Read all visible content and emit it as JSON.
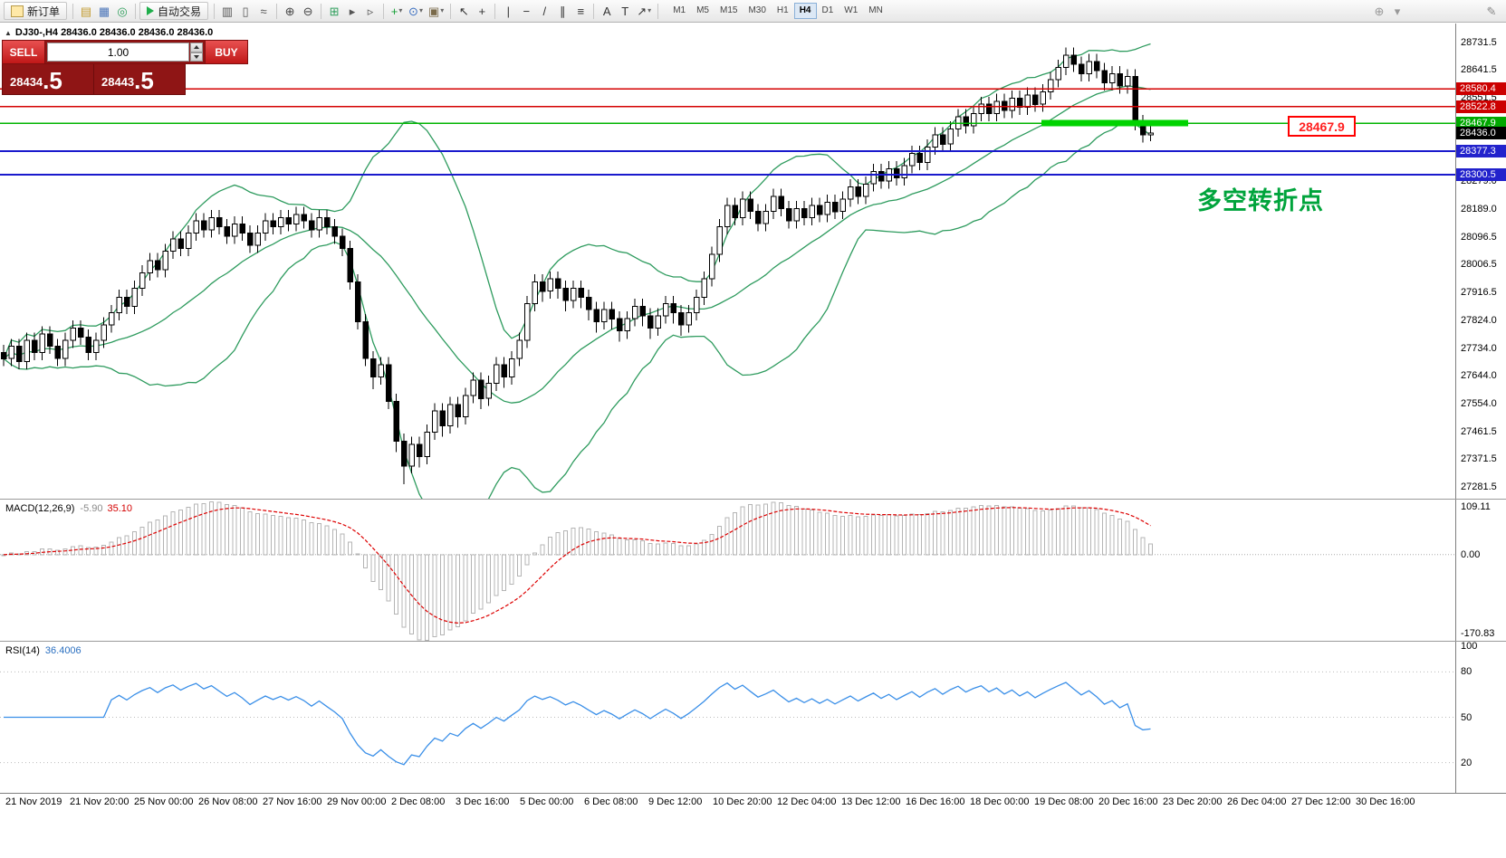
{
  "toolbar": {
    "new_order_label": "新订单",
    "auto_trading_label": "自动交易",
    "left_icons": [
      {
        "name": "market-watch-icon",
        "glyph": "▤",
        "color": "#c29a2e"
      },
      {
        "name": "data-window-icon",
        "glyph": "▦",
        "color": "#4a74b8"
      },
      {
        "name": "navigator-icon",
        "glyph": "◎",
        "color": "#2e9e5b"
      }
    ],
    "mid_icons": [
      {
        "name": "bars-chart-icon",
        "glyph": "▥",
        "color": "#555555"
      },
      {
        "name": "candlestick-chart-icon",
        "glyph": "▯",
        "color": "#555555"
      },
      {
        "name": "line-chart-icon",
        "glyph": "≈",
        "color": "#555555"
      },
      {
        "sep": true
      },
      {
        "name": "zoom-in-icon",
        "glyph": "⊕",
        "color": "#444444"
      },
      {
        "name": "zoom-out-icon",
        "glyph": "⊖",
        "color": "#444444"
      },
      {
        "sep": true
      },
      {
        "name": "tile-windows-icon",
        "glyph": "⊞",
        "color": "#2e9e5b"
      },
      {
        "name": "auto-scroll-icon",
        "glyph": "▸",
        "color": "#555555"
      },
      {
        "name": "chart-shift-icon",
        "glyph": "▹",
        "color": "#555555"
      },
      {
        "sep": true
      },
      {
        "name": "add-indicator-icon",
        "glyph": "+",
        "color": "#18a038",
        "caret": true
      },
      {
        "name": "period-icon",
        "glyph": "⊙",
        "color": "#3a6ec0",
        "caret": true
      },
      {
        "name": "template-icon",
        "glyph": "▣",
        "color": "#7a6a4a",
        "caret": true
      },
      {
        "sep": true
      },
      {
        "name": "cursor-icon",
        "glyph": "↖",
        "color": "#333333"
      },
      {
        "name": "crosshair-icon",
        "glyph": "+",
        "color": "#333333"
      },
      {
        "sep": true
      },
      {
        "name": "vertical-line-icon",
        "glyph": "|",
        "color": "#333333"
      },
      {
        "name": "horizontal-line-icon",
        "glyph": "−",
        "color": "#333333"
      },
      {
        "name": "trendline-icon",
        "glyph": "/",
        "color": "#333333"
      },
      {
        "name": "channel-icon",
        "glyph": "∥",
        "color": "#333333"
      },
      {
        "name": "fibonacci-icon",
        "glyph": "≡",
        "color": "#333333"
      },
      {
        "sep": true
      },
      {
        "name": "text-icon",
        "glyph": "A",
        "color": "#333333"
      },
      {
        "name": "label-icon",
        "glyph": "T",
        "color": "#333333"
      },
      {
        "name": "arrows-icon",
        "glyph": "↗",
        "color": "#333333",
        "caret": true
      }
    ],
    "right_icons": [
      {
        "name": "search-icon",
        "glyph": "⊕",
        "color": "#999999"
      },
      {
        "name": "dropdown-caret-icon",
        "glyph": "▾",
        "color": "#999999"
      }
    ],
    "far_right_icons": [
      {
        "name": "pencil-icon",
        "glyph": "✎",
        "color": "#888888"
      }
    ],
    "timeframes": [
      "M1",
      "M5",
      "M15",
      "M30",
      "H1",
      "H4",
      "D1",
      "W1",
      "MN"
    ],
    "active_timeframe": "H4"
  },
  "chart_header": {
    "collapse_glyph": "▲",
    "symbol_period": "DJ30-,H4",
    "ohlc_text": "28436.0 28436.0 28436.0 28436.0"
  },
  "trade_panel": {
    "sell_label": "SELL",
    "buy_label": "BUY",
    "volume": "1.00",
    "sell_price": "28434.5",
    "buy_price": "28443.5"
  },
  "annotation": {
    "text": "多空转折点"
  },
  "price_flag": {
    "text": "28467.9"
  },
  "levels": {
    "red": [
      28580.4,
      28522.8
    ],
    "blue": [
      28377.3,
      28300.5
    ],
    "green": 28467.9,
    "current": 28436.0
  },
  "price_axis": {
    "ticks": [
      28731.5,
      28641.5,
      28551.5,
      28461.5,
      28371.5,
      28279.0,
      28189.0,
      28096.5,
      28006.5,
      27916.5,
      27824.0,
      27734.0,
      27644.0,
      27554.0,
      27461.5,
      27371.5,
      27281.5
    ],
    "badges": [
      {
        "value": 28580.4,
        "color": "#cc0000"
      },
      {
        "value": 28522.8,
        "color": "#cc0000"
      },
      {
        "value": 28467.9,
        "color": "#00a800"
      },
      {
        "value": 28436.0,
        "color": "#000000"
      },
      {
        "value": 28377.3,
        "color": "#2222cc"
      },
      {
        "value": 28300.5,
        "color": "#2222cc"
      }
    ]
  },
  "macd": {
    "name": "MACD(12,26,9)",
    "value_main": "-5.90",
    "value_signal": "35.10",
    "axis_top": "109.11",
    "axis_zero": "0.00",
    "axis_bottom": "-170.83"
  },
  "rsi": {
    "name": "RSI(14)",
    "value": "36.4006",
    "axis_labels": [
      {
        "label": "100",
        "value": 100
      },
      {
        "label": "80",
        "value": 80
      },
      {
        "label": "50",
        "value": 50
      },
      {
        "label": "20",
        "value": 20
      }
    ]
  },
  "colors": {
    "candle_up": "#ffffff",
    "candle_down": "#000000",
    "candle_outline": "#000000",
    "bollinger": "#2E9B5E",
    "macd_hist": "#b4b4b4",
    "macd_signal": "#dd0000",
    "rsi_line": "#3a8fe8",
    "level_red": "#d40000",
    "level_blue": "#1a1acd",
    "level_green": "#00b400",
    "level_highlight": "#00d300"
  },
  "chart_data": {
    "type": "candlestick",
    "symbol": "DJ30-",
    "period": "H4",
    "scale": {
      "price_top": 28793.5,
      "price_bottom": 27243.0
    },
    "indicators": {
      "bollinger": {
        "period": 20,
        "deviation": 2
      },
      "macd": {
        "fast": 12,
        "slow": 26,
        "signal": 9,
        "range_max": 109.11,
        "range_min": -170.83
      },
      "rsi": {
        "period": 14,
        "levels": [
          80,
          50,
          20
        ]
      }
    },
    "time_labels": [
      "21 Nov 2019",
      "21 Nov 20:00",
      "25 Nov 00:00",
      "26 Nov 08:00",
      "27 Nov 16:00",
      "29 Nov 00:00",
      "2 Dec 08:00",
      "3 Dec 16:00",
      "5 Dec 00:00",
      "6 Dec 08:00",
      "9 Dec 12:00",
      "10 Dec 20:00",
      "12 Dec 04:00",
      "13 Dec 12:00",
      "16 Dec 16:00",
      "18 Dec 00:00",
      "19 Dec 08:00",
      "20 Dec 16:00",
      "23 Dec 20:00",
      "26 Dec 04:00",
      "27 Dec 12:00",
      "30 Dec 16:00"
    ],
    "ohlc": [
      [
        27720,
        27745,
        27675,
        27700
      ],
      [
        27700,
        27765,
        27675,
        27740
      ],
      [
        27740,
        27765,
        27665,
        27690
      ],
      [
        27690,
        27785,
        27665,
        27760
      ],
      [
        27760,
        27785,
        27695,
        27720
      ],
      [
        27720,
        27805,
        27695,
        27780
      ],
      [
        27780,
        27805,
        27715,
        27740
      ],
      [
        27740,
        27765,
        27675,
        27700
      ],
      [
        27700,
        27785,
        27675,
        27760
      ],
      [
        27760,
        27825,
        27735,
        27800
      ],
      [
        27800,
        27825,
        27745,
        27770
      ],
      [
        27770,
        27795,
        27695,
        27720
      ],
      [
        27720,
        27785,
        27695,
        27760
      ],
      [
        27760,
        27835,
        27735,
        27810
      ],
      [
        27810,
        27875,
        27785,
        27850
      ],
      [
        27850,
        27925,
        27825,
        27900
      ],
      [
        27900,
        27925,
        27845,
        27870
      ],
      [
        27870,
        27955,
        27845,
        27930
      ],
      [
        27930,
        28005,
        27905,
        27980
      ],
      [
        27980,
        28045,
        27955,
        28020
      ],
      [
        28020,
        28045,
        27965,
        27990
      ],
      [
        27990,
        28075,
        27965,
        28050
      ],
      [
        28050,
        28115,
        28025,
        28090
      ],
      [
        28090,
        28115,
        28035,
        28060
      ],
      [
        28060,
        28135,
        28035,
        28110
      ],
      [
        28110,
        28175,
        28085,
        28150
      ],
      [
        28150,
        28175,
        28095,
        28120
      ],
      [
        28120,
        28185,
        28095,
        28160
      ],
      [
        28160,
        28185,
        28105,
        28130
      ],
      [
        28130,
        28155,
        28075,
        28100
      ],
      [
        28100,
        28165,
        28075,
        28140
      ],
      [
        28140,
        28165,
        28085,
        28110
      ],
      [
        28110,
        28135,
        28045,
        28070
      ],
      [
        28070,
        28135,
        28045,
        28110
      ],
      [
        28110,
        28175,
        28085,
        28150
      ],
      [
        28150,
        28175,
        28105,
        28130
      ],
      [
        28130,
        28185,
        28105,
        28160
      ],
      [
        28160,
        28185,
        28115,
        28140
      ],
      [
        28140,
        28195,
        28115,
        28170
      ],
      [
        28170,
        28195,
        28125,
        28150
      ],
      [
        28150,
        28175,
        28095,
        28120
      ],
      [
        28120,
        28185,
        28095,
        28160
      ],
      [
        28160,
        28185,
        28105,
        28130
      ],
      [
        28130,
        28155,
        28075,
        28100
      ],
      [
        28100,
        28125,
        28035,
        28060
      ],
      [
        28060,
        28085,
        27925,
        27950
      ],
      [
        27950,
        27975,
        27795,
        27820
      ],
      [
        27820,
        27845,
        27675,
        27700
      ],
      [
        27700,
        27725,
        27600,
        27640
      ],
      [
        27640,
        27705,
        27615,
        27680
      ],
      [
        27680,
        27705,
        27535,
        27560
      ],
      [
        27560,
        27585,
        27395,
        27430
      ],
      [
        27430,
        27455,
        27290,
        27350
      ],
      [
        27350,
        27445,
        27325,
        27420
      ],
      [
        27420,
        27445,
        27345,
        27380
      ],
      [
        27380,
        27485,
        27355,
        27460
      ],
      [
        27460,
        27555,
        27435,
        27530
      ],
      [
        27530,
        27555,
        27445,
        27480
      ],
      [
        27480,
        27575,
        27455,
        27550
      ],
      [
        27550,
        27575,
        27475,
        27510
      ],
      [
        27510,
        27605,
        27485,
        27580
      ],
      [
        27580,
        27655,
        27555,
        27630
      ],
      [
        27630,
        27655,
        27535,
        27570
      ],
      [
        27570,
        27645,
        27545,
        27620
      ],
      [
        27620,
        27705,
        27595,
        27680
      ],
      [
        27680,
        27705,
        27605,
        27640
      ],
      [
        27640,
        27725,
        27615,
        27700
      ],
      [
        27700,
        27785,
        27675,
        27760
      ],
      [
        27760,
        27905,
        27735,
        27880
      ],
      [
        27880,
        27975,
        27855,
        27950
      ],
      [
        27950,
        27975,
        27885,
        27920
      ],
      [
        27920,
        27985,
        27895,
        27960
      ],
      [
        27960,
        27985,
        27895,
        27930
      ],
      [
        27930,
        27955,
        27855,
        27890
      ],
      [
        27890,
        27955,
        27865,
        27930
      ],
      [
        27930,
        27955,
        27865,
        27900
      ],
      [
        27900,
        27925,
        27825,
        27860
      ],
      [
        27860,
        27885,
        27785,
        27820
      ],
      [
        27820,
        27885,
        27795,
        27860
      ],
      [
        27860,
        27885,
        27795,
        27830
      ],
      [
        27830,
        27855,
        27755,
        27790
      ],
      [
        27790,
        27855,
        27765,
        27830
      ],
      [
        27830,
        27895,
        27805,
        27870
      ],
      [
        27870,
        27895,
        27805,
        27840
      ],
      [
        27840,
        27865,
        27765,
        27800
      ],
      [
        27800,
        27865,
        27775,
        27840
      ],
      [
        27840,
        27905,
        27815,
        27880
      ],
      [
        27880,
        27905,
        27815,
        27850
      ],
      [
        27850,
        27875,
        27775,
        27810
      ],
      [
        27810,
        27875,
        27785,
        27850
      ],
      [
        27850,
        27925,
        27825,
        27900
      ],
      [
        27900,
        27985,
        27875,
        27960
      ],
      [
        27960,
        28065,
        27935,
        28040
      ],
      [
        28040,
        28155,
        28015,
        28130
      ],
      [
        28130,
        28225,
        28105,
        28200
      ],
      [
        28200,
        28225,
        28135,
        28160
      ],
      [
        28160,
        28245,
        28135,
        28220
      ],
      [
        28220,
        28245,
        28155,
        28180
      ],
      [
        28180,
        28205,
        28115,
        28140
      ],
      [
        28140,
        28205,
        28115,
        28180
      ],
      [
        28180,
        28255,
        28155,
        28230
      ],
      [
        28230,
        28255,
        28165,
        28190
      ],
      [
        28190,
        28215,
        28125,
        28150
      ],
      [
        28150,
        28215,
        28125,
        28190
      ],
      [
        28190,
        28215,
        28135,
        28160
      ],
      [
        28160,
        28225,
        28135,
        28200
      ],
      [
        28200,
        28225,
        28145,
        28170
      ],
      [
        28170,
        28235,
        28145,
        28210
      ],
      [
        28210,
        28235,
        28155,
        28180
      ],
      [
        28180,
        28245,
        28155,
        28220
      ],
      [
        28220,
        28285,
        28195,
        28260
      ],
      [
        28260,
        28285,
        28205,
        28230
      ],
      [
        28230,
        28295,
        28205,
        28270
      ],
      [
        28270,
        28335,
        28245,
        28310
      ],
      [
        28310,
        28335,
        28255,
        28280
      ],
      [
        28280,
        28345,
        28255,
        28320
      ],
      [
        28320,
        28345,
        28265,
        28290
      ],
      [
        28290,
        28355,
        28265,
        28330
      ],
      [
        28330,
        28395,
        28305,
        28370
      ],
      [
        28370,
        28395,
        28315,
        28340
      ],
      [
        28340,
        28415,
        28315,
        28390
      ],
      [
        28390,
        28455,
        28365,
        28430
      ],
      [
        28430,
        28455,
        28375,
        28400
      ],
      [
        28400,
        28475,
        28375,
        28450
      ],
      [
        28450,
        28515,
        28425,
        28490
      ],
      [
        28490,
        28515,
        28435,
        28460
      ],
      [
        28460,
        28525,
        28435,
        28500
      ],
      [
        28500,
        28555,
        28475,
        28530
      ],
      [
        28530,
        28555,
        28475,
        28500
      ],
      [
        28500,
        28565,
        28475,
        28540
      ],
      [
        28540,
        28565,
        28485,
        28510
      ],
      [
        28510,
        28575,
        28485,
        28550
      ],
      [
        28550,
        28575,
        28495,
        28520
      ],
      [
        28520,
        28585,
        28495,
        28560
      ],
      [
        28560,
        28585,
        28505,
        28530
      ],
      [
        28530,
        28595,
        28505,
        28570
      ],
      [
        28570,
        28635,
        28545,
        28610
      ],
      [
        28610,
        28675,
        28585,
        28650
      ],
      [
        28650,
        28715,
        28625,
        28690
      ],
      [
        28690,
        28715,
        28635,
        28660
      ],
      [
        28660,
        28685,
        28605,
        28630
      ],
      [
        28630,
        28695,
        28605,
        28670
      ],
      [
        28670,
        28695,
        28615,
        28640
      ],
      [
        28640,
        28665,
        28575,
        28600
      ],
      [
        28600,
        28655,
        28575,
        28630
      ],
      [
        28630,
        28655,
        28565,
        28590
      ],
      [
        28590,
        28645,
        28565,
        28620
      ],
      [
        28620,
        28645,
        28445,
        28470
      ],
      [
        28470,
        28495,
        28405,
        28430
      ],
      [
        28430,
        28460,
        28410,
        28436
      ]
    ]
  }
}
